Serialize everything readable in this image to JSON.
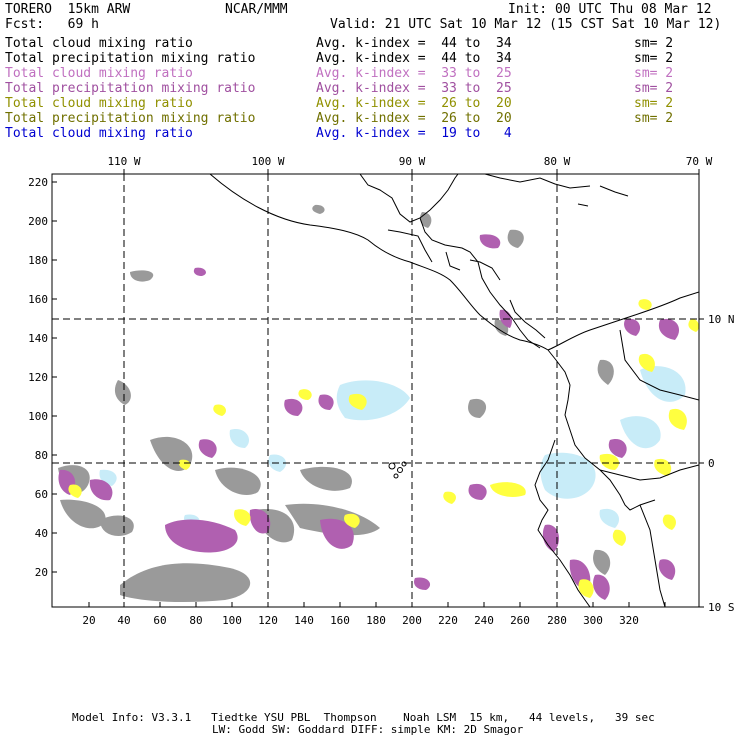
{
  "header": {
    "model": "TORERO  15km ARW",
    "center": "NCAR/MMM",
    "init": "Init: 00 UTC Thu 08 Mar 12",
    "fcst": "Fcst:   69 h",
    "valid": "Valid: 21 UTC Sat 10 Mar 12 (15 CST Sat 10 Mar 12)"
  },
  "legend": [
    {
      "field": "Total cloud mixing ratio",
      "stat": "Avg. k-index =  44 to  34",
      "sm": "sm= 2",
      "color": "#000000"
    },
    {
      "field": "Total precipitation mixing ratio",
      "stat": "Avg. k-index =  44 to  34",
      "sm": "sm= 2",
      "color": "#000000"
    },
    {
      "field": "Total cloud mixing ratio",
      "stat": "Avg. k-index =  33 to  25",
      "sm": "sm= 2",
      "color": "#c070c0"
    },
    {
      "field": "Total precipitation mixing ratio",
      "stat": "Avg. k-index =  33 to  25",
      "sm": "sm= 2",
      "color": "#a050a0"
    },
    {
      "field": "Total cloud mixing ratio",
      "stat": "Avg. k-index =  26 to  20",
      "sm": "sm= 2",
      "color": "#909000"
    },
    {
      "field": "Total precipitation mixing ratio",
      "stat": "Avg. k-index =  26 to  20",
      "sm": "sm= 2",
      "color": "#707000"
    },
    {
      "field": "Total cloud mixing ratio",
      "stat": "Avg. k-index =  19 to   4",
      "sm": "",
      "color": "#0000d0"
    }
  ],
  "axes": {
    "top_lon": [
      "110 W",
      "100 W",
      "90 W",
      "80 W",
      "70 W"
    ],
    "right_lat": [
      "10 N",
      "0",
      "10 S"
    ],
    "y_ticks": [
      "20",
      "40",
      "60",
      "80",
      "100",
      "120",
      "140",
      "160",
      "180",
      "200",
      "220"
    ],
    "x_ticks": [
      "20",
      "40",
      "60",
      "80",
      "100",
      "120",
      "140",
      "160",
      "180",
      "200",
      "220",
      "240",
      "260",
      "280",
      "300",
      "320"
    ]
  },
  "colors": {
    "gray": "#9a9a9a",
    "purple": "#b060b0",
    "yellow": "#ffff40",
    "lightblue": "#c8ecf8"
  },
  "footer": {
    "line1": "Model Info: V3.3.1   Tiedtke YSU PBL  Thompson    Noah LSM  15 km,   44 levels,   39 sec",
    "line2": "LW: Godd SW: Goddard DIFF: simple KM: 2D Smagor"
  }
}
